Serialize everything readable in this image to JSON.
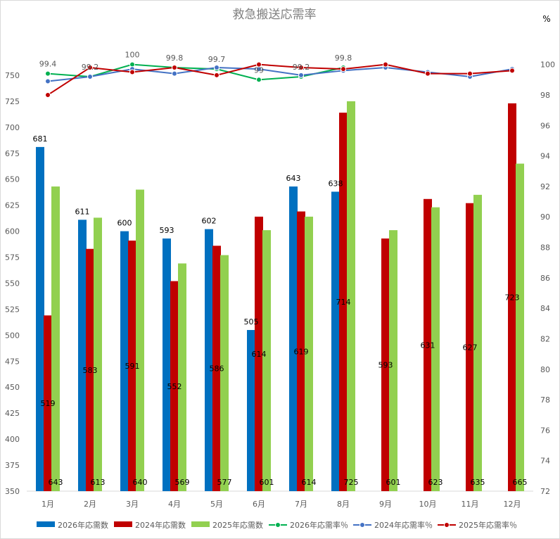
{
  "chart_data": {
    "type": "bar",
    "title": "救急搬送応需率",
    "y2_unit": "%",
    "categories": [
      "1月",
      "2月",
      "3月",
      "4月",
      "5月",
      "6月",
      "7月",
      "8月",
      "9月",
      "10月",
      "11月",
      "12月"
    ],
    "ylim": [
      350,
      775
    ],
    "yticks": [
      350,
      375,
      400,
      425,
      450,
      475,
      500,
      525,
      550,
      575,
      600,
      625,
      650,
      675,
      700,
      725,
      750
    ],
    "y2lim": [
      72,
      101
    ],
    "y2ticks": [
      72,
      74,
      76,
      78,
      80,
      82,
      84,
      86,
      88,
      90,
      92,
      94,
      96,
      98,
      100
    ],
    "bar_series": [
      {
        "name": "2026年応需数",
        "color": "#0070c0",
        "values": [
          681,
          611,
          600,
          593,
          602,
          505,
          643,
          638,
          null,
          null,
          null,
          null
        ],
        "labels": [
          "681",
          "611",
          "600",
          "593",
          "602",
          "505",
          "643",
          "638",
          "",
          "",
          "",
          ""
        ]
      },
      {
        "name": "2024年応需数",
        "color": "#c00000",
        "values": [
          519,
          583,
          591,
          552,
          586,
          614,
          619,
          714,
          593,
          631,
          627,
          723
        ],
        "labels": [
          "519",
          "583",
          "591",
          "552",
          "586",
          "614",
          "619",
          "714",
          "593",
          "631",
          "627",
          "723"
        ]
      },
      {
        "name": "2025年応需数",
        "color": "#92d050",
        "values": [
          643,
          613,
          640,
          569,
          577,
          601,
          614,
          725,
          601,
          623,
          635,
          665
        ],
        "labels": [
          "643",
          "613",
          "640",
          "569",
          "577",
          "601",
          "614",
          "725",
          "601",
          "623",
          "635",
          "665"
        ]
      }
    ],
    "line_series": [
      {
        "name": "2026年応需率％",
        "color": "#00b050",
        "values": [
          99.4,
          99.2,
          100,
          99.8,
          99.7,
          99.0,
          99.2,
          99.8,
          null,
          null,
          null,
          null
        ],
        "labels": [
          "99.4",
          "99.2",
          "100",
          "99.8",
          "99.7",
          "99",
          "99.2",
          "99.8",
          "",
          "",
          "",
          ""
        ]
      },
      {
        "name": "2024年応需率％",
        "color": "#4472c4",
        "values": [
          98.9,
          99.2,
          99.7,
          99.4,
          99.8,
          99.7,
          99.3,
          99.6,
          99.8,
          99.5,
          99.2,
          99.7
        ],
        "labels": []
      },
      {
        "name": "2025年応需率％",
        "color": "#c00000",
        "values": [
          98.0,
          99.8,
          99.5,
          99.8,
          99.3,
          100,
          99.8,
          99.7,
          100,
          99.4,
          99.4,
          99.6
        ],
        "labels": []
      }
    ],
    "legend_position": "bottom",
    "grid": false
  }
}
